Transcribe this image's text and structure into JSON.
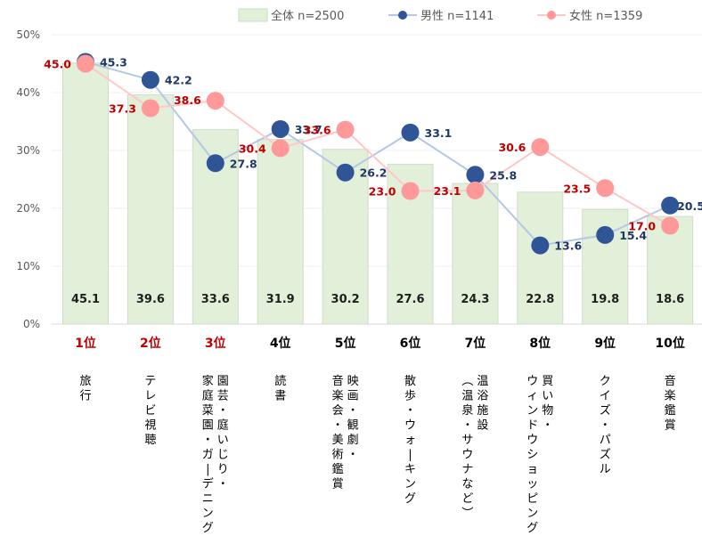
{
  "chart_data": {
    "type": "bar",
    "title": "",
    "xlabel": "",
    "ylabel": "",
    "ylim": [
      0,
      50
    ],
    "yticks": [
      "0%",
      "10%",
      "20%",
      "30%",
      "40%",
      "50%"
    ],
    "grid": true,
    "legend_position": "top-right",
    "ranks": [
      "1位",
      "2位",
      "3位",
      "4位",
      "5位",
      "6位",
      "7位",
      "8位",
      "9位",
      "10位"
    ],
    "rank_colors": [
      "#c00000",
      "#c00000",
      "#c00000",
      "#000000",
      "#000000",
      "#000000",
      "#000000",
      "#000000",
      "#000000",
      "#000000"
    ],
    "categories": [
      [
        "旅行"
      ],
      [
        "テレビ視聴"
      ],
      [
        "園芸・庭いじり・",
        "家庭菜園・ガーデニング"
      ],
      [
        "読書"
      ],
      [
        "映画・観劇・",
        "音楽会・美術鑑賞"
      ],
      [
        "散歩・ウォーキング"
      ],
      [
        "温浴施設",
        "（温泉・サウナなど）"
      ],
      [
        "買い物・",
        "ウィンドウショッピング"
      ],
      [
        "クイズ・パズル"
      ],
      [
        "音楽鑑賞"
      ]
    ],
    "series": [
      {
        "name": "全体 n=2500",
        "type": "bar",
        "color": "#e2efd9",
        "values": [
          45.1,
          39.6,
          33.6,
          31.9,
          30.2,
          27.6,
          24.3,
          22.8,
          19.8,
          18.6
        ]
      },
      {
        "name": "男性 n=1141",
        "type": "line",
        "color": "#2f5597",
        "line_color": "#b4c7e7",
        "values": [
          45.3,
          42.2,
          27.8,
          33.7,
          26.2,
          33.1,
          25.8,
          13.6,
          15.4,
          20.5
        ]
      },
      {
        "name": "女性 n=1359",
        "type": "line",
        "color": "#ff9999",
        "line_color": "#ffc7c7",
        "values": [
          45.0,
          37.3,
          38.6,
          30.4,
          33.6,
          23.0,
          23.1,
          30.6,
          23.5,
          17.0
        ]
      }
    ]
  }
}
